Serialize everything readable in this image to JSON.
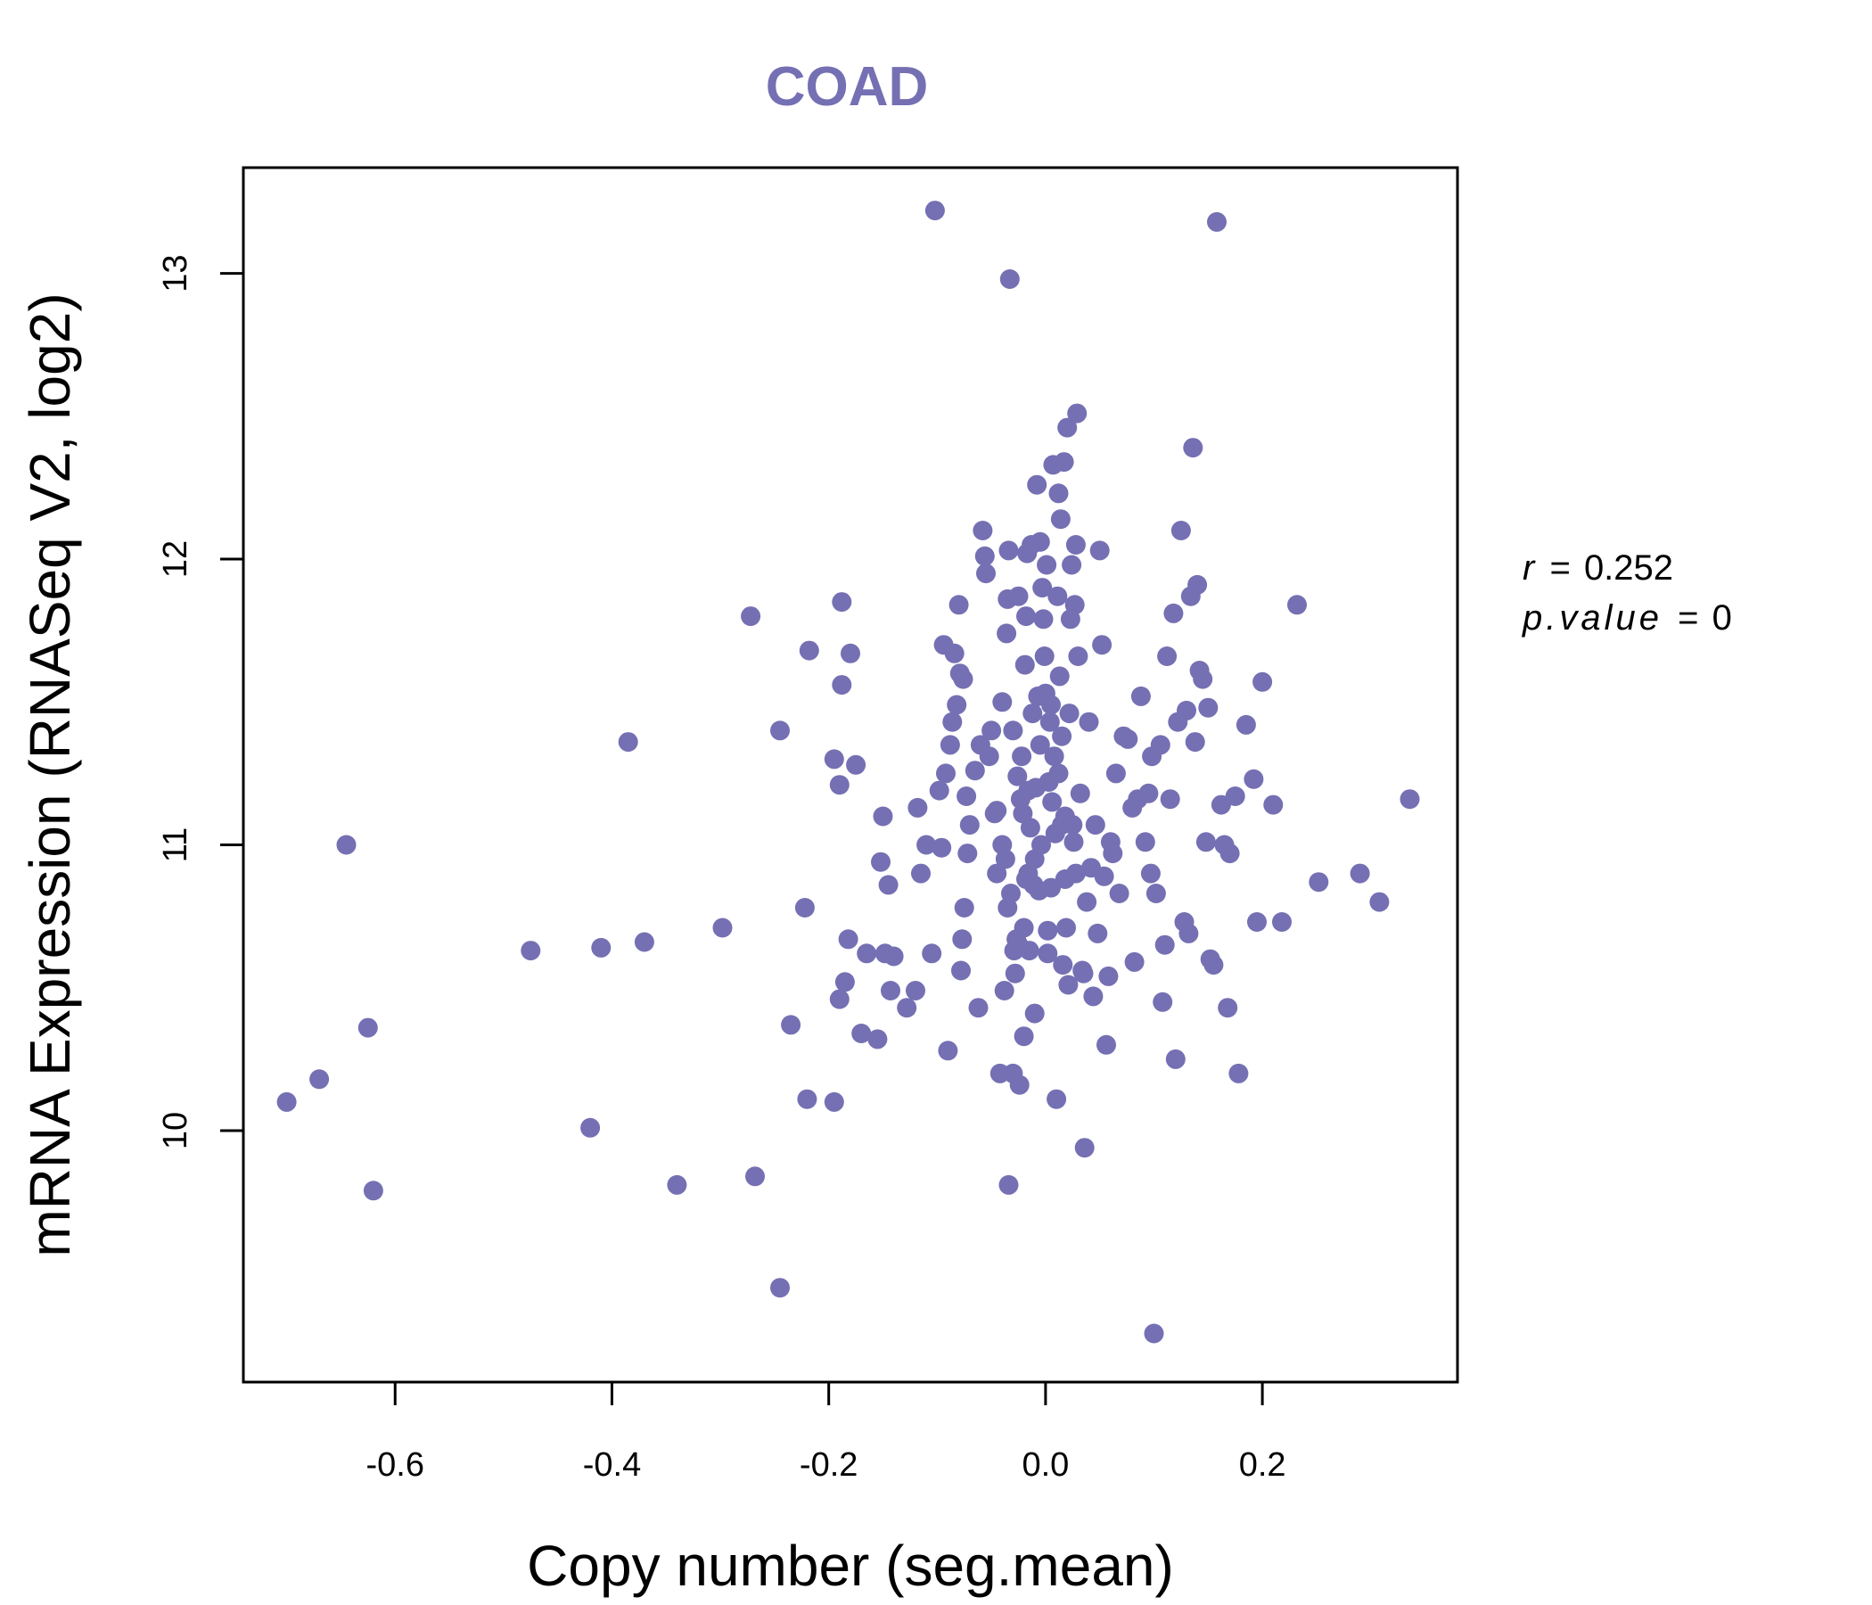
{
  "chart_data": {
    "type": "scatter",
    "title": "COAD",
    "xlabel": "Copy number (seg.mean)",
    "ylabel": "mRNA Expression (RNASeq V2, log2)",
    "xlim": [
      -0.74,
      0.38
    ],
    "ylim": [
      9.12,
      13.37
    ],
    "xticks": [
      -0.6,
      -0.4,
      -0.2,
      0.0,
      0.2
    ],
    "xtick_labels": [
      "-0.6",
      "-0.4",
      "-0.2",
      "0.0",
      "0.2"
    ],
    "yticks": [
      10,
      11,
      12,
      13
    ],
    "ytick_labels": [
      "10",
      "11",
      "12",
      "13"
    ],
    "color": "#7570b3",
    "grid": false,
    "annotation": {
      "r_label": "r",
      "r_value": "0.252",
      "p_label": "p.value",
      "p_value": "0"
    },
    "points": [
      [
        -0.7,
        10.1
      ],
      [
        -0.67,
        10.18
      ],
      [
        -0.645,
        11.0
      ],
      [
        -0.625,
        10.36
      ],
      [
        -0.62,
        9.79
      ],
      [
        -0.475,
        10.63
      ],
      [
        -0.42,
        10.01
      ],
      [
        -0.41,
        10.64
      ],
      [
        -0.385,
        11.36
      ],
      [
        -0.37,
        10.66
      ],
      [
        -0.34,
        9.81
      ],
      [
        -0.298,
        10.71
      ],
      [
        -0.272,
        11.8
      ],
      [
        -0.268,
        9.84
      ],
      [
        -0.245,
        11.4
      ],
      [
        -0.245,
        9.45
      ],
      [
        -0.235,
        10.37
      ],
      [
        -0.222,
        10.78
      ],
      [
        -0.218,
        11.68
      ],
      [
        -0.22,
        10.11
      ],
      [
        -0.195,
        11.3
      ],
      [
        -0.19,
        11.21
      ],
      [
        -0.188,
        11.85
      ],
      [
        -0.188,
        11.56
      ],
      [
        -0.185,
        10.52
      ],
      [
        -0.182,
        10.67
      ],
      [
        -0.19,
        10.46
      ],
      [
        -0.18,
        11.67
      ],
      [
        -0.175,
        11.28
      ],
      [
        -0.17,
        10.34
      ],
      [
        -0.195,
        10.1
      ],
      [
        -0.165,
        10.62
      ],
      [
        -0.155,
        10.32
      ],
      [
        -0.152,
        10.94
      ],
      [
        -0.15,
        11.1
      ],
      [
        -0.148,
        10.62
      ],
      [
        -0.145,
        10.86
      ],
      [
        -0.143,
        10.49
      ],
      [
        -0.14,
        10.61
      ],
      [
        -0.128,
        10.43
      ],
      [
        -0.12,
        10.49
      ],
      [
        -0.118,
        11.13
      ],
      [
        -0.115,
        10.9
      ],
      [
        -0.11,
        11.0
      ],
      [
        -0.105,
        10.62
      ],
      [
        -0.102,
        13.22
      ],
      [
        -0.098,
        11.19
      ],
      [
        -0.096,
        10.99
      ],
      [
        -0.094,
        11.7
      ],
      [
        -0.092,
        11.25
      ],
      [
        -0.09,
        10.28
      ],
      [
        -0.088,
        11.35
      ],
      [
        -0.086,
        11.43
      ],
      [
        -0.084,
        11.67
      ],
      [
        -0.082,
        11.49
      ],
      [
        -0.08,
        11.84
      ],
      [
        -0.079,
        11.6
      ],
      [
        -0.078,
        10.56
      ],
      [
        -0.077,
        10.67
      ],
      [
        -0.076,
        11.58
      ],
      [
        -0.075,
        10.78
      ],
      [
        -0.073,
        11.17
      ],
      [
        -0.072,
        10.97
      ],
      [
        -0.07,
        11.07
      ],
      [
        -0.065,
        11.26
      ],
      [
        -0.062,
        10.43
      ],
      [
        -0.058,
        12.1
      ],
      [
        -0.056,
        12.01
      ],
      [
        -0.055,
        11.95
      ],
      [
        -0.052,
        11.31
      ],
      [
        -0.05,
        11.4
      ],
      [
        -0.047,
        11.11
      ],
      [
        -0.045,
        10.9
      ],
      [
        -0.042,
        10.2
      ],
      [
        -0.04,
        11.5
      ],
      [
        -0.04,
        11.0
      ],
      [
        -0.038,
        10.49
      ],
      [
        -0.037,
        10.95
      ],
      [
        -0.036,
        11.74
      ],
      [
        -0.035,
        11.86
      ],
      [
        -0.034,
        12.03
      ],
      [
        -0.034,
        9.81
      ],
      [
        -0.033,
        12.98
      ],
      [
        -0.032,
        10.83
      ],
      [
        -0.03,
        10.2
      ],
      [
        -0.029,
        10.63
      ],
      [
        -0.028,
        10.55
      ],
      [
        -0.027,
        10.67
      ],
      [
        -0.026,
        11.24
      ],
      [
        -0.025,
        11.87
      ],
      [
        -0.024,
        10.16
      ],
      [
        -0.023,
        11.16
      ],
      [
        -0.022,
        11.31
      ],
      [
        -0.021,
        11.11
      ],
      [
        -0.02,
        10.71
      ],
      [
        -0.02,
        10.33
      ],
      [
        -0.019,
        11.63
      ],
      [
        -0.018,
        11.8
      ],
      [
        -0.017,
        12.02
      ],
      [
        -0.016,
        10.9
      ],
      [
        -0.016,
        11.19
      ],
      [
        -0.015,
        10.63
      ],
      [
        -0.014,
        11.06
      ],
      [
        -0.013,
        12.05
      ],
      [
        -0.012,
        11.46
      ],
      [
        -0.011,
        10.86
      ],
      [
        -0.01,
        10.41
      ],
      [
        -0.009,
        11.2
      ],
      [
        -0.008,
        12.26
      ],
      [
        -0.007,
        11.52
      ],
      [
        -0.006,
        10.84
      ],
      [
        -0.005,
        12.06
      ],
      [
        -0.004,
        11.0
      ],
      [
        -0.003,
        11.9
      ],
      [
        -0.002,
        11.79
      ],
      [
        -0.001,
        11.66
      ],
      [
        0.0,
        11.53
      ],
      [
        0.001,
        11.98
      ],
      [
        0.002,
        10.7
      ],
      [
        0.003,
        11.22
      ],
      [
        0.004,
        11.43
      ],
      [
        0.005,
        11.49
      ],
      [
        0.006,
        11.15
      ],
      [
        0.007,
        12.33
      ],
      [
        0.008,
        11.31
      ],
      [
        0.009,
        11.04
      ],
      [
        0.01,
        10.11
      ],
      [
        0.011,
        11.87
      ],
      [
        0.012,
        12.23
      ],
      [
        0.013,
        11.59
      ],
      [
        0.014,
        12.14
      ],
      [
        0.015,
        11.07
      ],
      [
        0.016,
        10.58
      ],
      [
        0.017,
        12.34
      ],
      [
        0.018,
        10.88
      ],
      [
        0.019,
        10.71
      ],
      [
        0.02,
        12.46
      ],
      [
        0.021,
        10.51
      ],
      [
        0.022,
        11.46
      ],
      [
        0.023,
        11.79
      ],
      [
        0.024,
        11.98
      ],
      [
        0.025,
        11.07
      ],
      [
        0.026,
        11.01
      ],
      [
        0.027,
        11.84
      ],
      [
        0.028,
        12.05
      ],
      [
        0.029,
        12.51
      ],
      [
        0.03,
        11.66
      ],
      [
        0.032,
        11.18
      ],
      [
        0.034,
        10.56
      ],
      [
        0.036,
        9.94
      ],
      [
        0.038,
        10.8
      ],
      [
        0.04,
        11.43
      ],
      [
        0.042,
        10.92
      ],
      [
        0.044,
        10.47
      ],
      [
        0.046,
        11.07
      ],
      [
        0.048,
        10.69
      ],
      [
        0.05,
        12.03
      ],
      [
        0.052,
        11.7
      ],
      [
        0.054,
        10.89
      ],
      [
        0.056,
        10.3
      ],
      [
        0.058,
        10.54
      ],
      [
        0.06,
        11.01
      ],
      [
        0.062,
        10.97
      ],
      [
        0.065,
        11.25
      ],
      [
        0.068,
        10.83
      ],
      [
        0.072,
        11.38
      ],
      [
        0.076,
        11.37
      ],
      [
        0.08,
        11.13
      ],
      [
        0.082,
        10.59
      ],
      [
        0.085,
        11.16
      ],
      [
        0.088,
        11.52
      ],
      [
        0.092,
        11.01
      ],
      [
        0.095,
        11.18
      ],
      [
        0.097,
        10.9
      ],
      [
        0.098,
        11.31
      ],
      [
        0.1,
        9.29
      ],
      [
        0.102,
        10.83
      ],
      [
        0.106,
        11.35
      ],
      [
        0.108,
        10.45
      ],
      [
        0.11,
        10.65
      ],
      [
        0.112,
        11.66
      ],
      [
        0.115,
        11.16
      ],
      [
        0.118,
        11.81
      ],
      [
        0.12,
        10.25
      ],
      [
        0.122,
        11.43
      ],
      [
        0.125,
        12.1
      ],
      [
        0.128,
        10.73
      ],
      [
        0.13,
        11.47
      ],
      [
        0.132,
        10.69
      ],
      [
        0.134,
        11.87
      ],
      [
        0.136,
        12.39
      ],
      [
        0.138,
        11.36
      ],
      [
        0.14,
        11.91
      ],
      [
        0.142,
        11.61
      ],
      [
        0.145,
        11.58
      ],
      [
        0.148,
        11.01
      ],
      [
        0.15,
        11.48
      ],
      [
        0.152,
        10.6
      ],
      [
        0.155,
        10.58
      ],
      [
        0.158,
        13.18
      ],
      [
        0.162,
        11.14
      ],
      [
        0.165,
        11.0
      ],
      [
        0.168,
        10.43
      ],
      [
        0.17,
        10.97
      ],
      [
        0.175,
        11.17
      ],
      [
        0.178,
        10.2
      ],
      [
        0.185,
        11.42
      ],
      [
        0.192,
        11.23
      ],
      [
        0.195,
        10.73
      ],
      [
        0.2,
        11.57
      ],
      [
        0.21,
        11.14
      ],
      [
        0.218,
        10.73
      ],
      [
        0.232,
        11.84
      ],
      [
        0.252,
        10.87
      ],
      [
        0.29,
        10.9
      ],
      [
        0.308,
        10.8
      ],
      [
        0.336,
        11.16
      ],
      [
        -0.06,
        11.35
      ],
      [
        -0.045,
        11.12
      ],
      [
        -0.03,
        11.4
      ],
      [
        -0.01,
        10.95
      ],
      [
        0.005,
        10.85
      ],
      [
        0.012,
        11.25
      ],
      [
        0.018,
        11.1
      ],
      [
        -0.025,
        10.65
      ],
      [
        0.028,
        10.9
      ],
      [
        -0.005,
        11.35
      ],
      [
        0.002,
        10.62
      ],
      [
        0.015,
        11.38
      ],
      [
        -0.018,
        10.88
      ],
      [
        0.035,
        10.55
      ],
      [
        -0.035,
        10.78
      ]
    ]
  }
}
